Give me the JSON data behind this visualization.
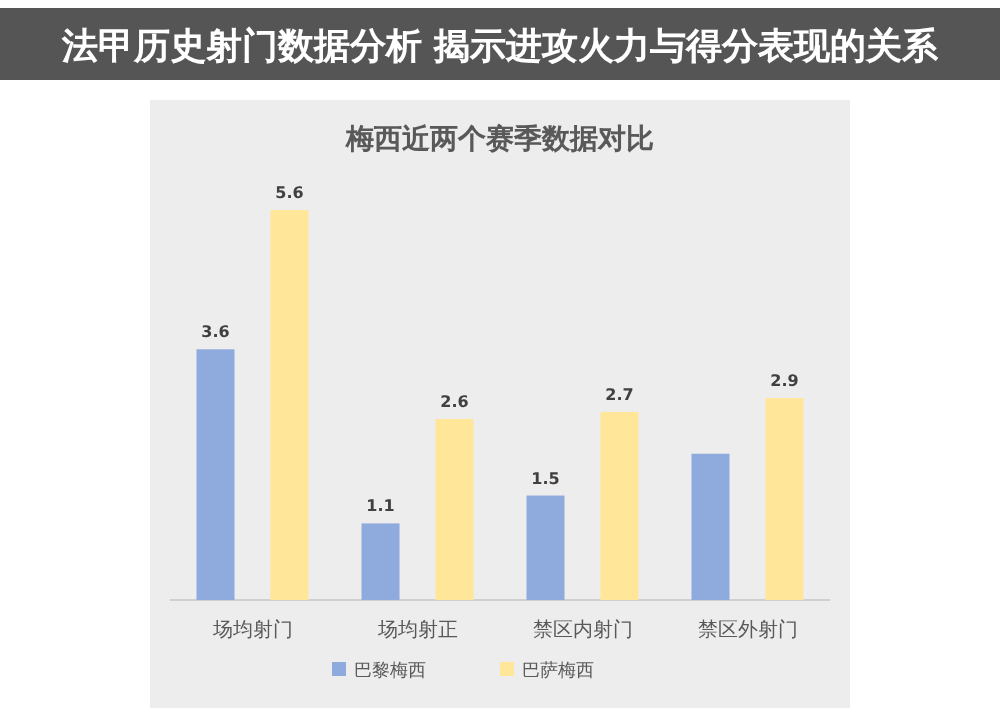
{
  "chart_data": {
    "type": "bar",
    "title": "梅西近两个赛季数据对比",
    "annotations": [
      "法甲历史射门数据分析 揭示进攻火力与得分表现的关系"
    ],
    "categories": [
      "场均射门",
      "场均射正",
      "禁区内射门",
      "禁区外射门"
    ],
    "series": [
      {
        "name": "巴黎梅西",
        "color": "#8faadc",
        "values": [
          3.6,
          1.1,
          1.5,
          2.1
        ],
        "value_labels": [
          "3.6",
          "1.1",
          "1.5",
          null
        ]
      },
      {
        "name": "巴萨梅西",
        "color": "#ffe699",
        "values": [
          5.6,
          2.6,
          2.7,
          2.9
        ],
        "value_labels": [
          "5.6",
          "2.6",
          "2.7",
          "2.9"
        ]
      }
    ],
    "relative": false,
    "legend": "bottom",
    "grid": false
  }
}
